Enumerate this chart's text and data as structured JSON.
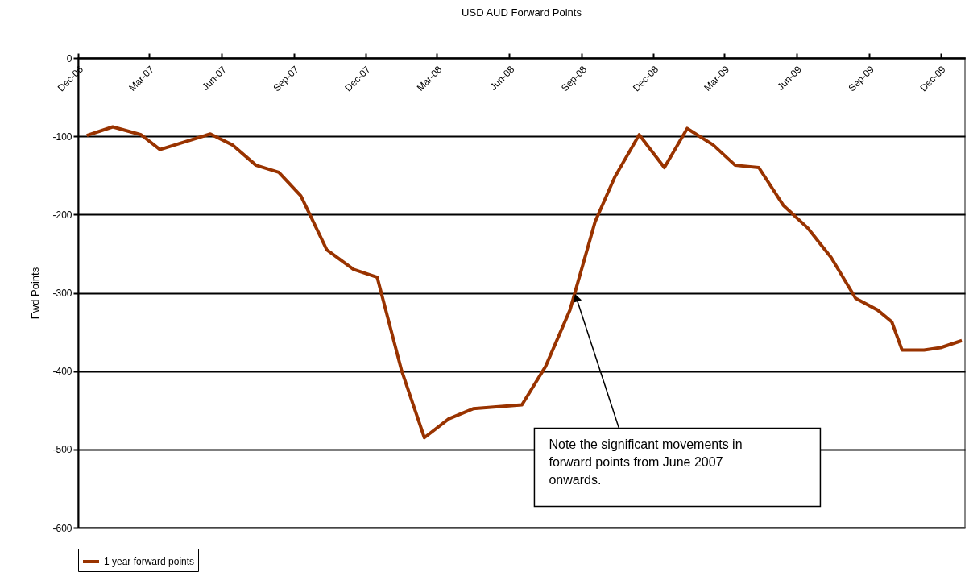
{
  "chart_data": {
    "type": "line",
    "title": "USD AUD Forward Points",
    "ylabel": "Fwd Points",
    "x": [
      "2006-12-12",
      "2007-01-14",
      "2007-02-19",
      "2007-03-15",
      "2007-05-18",
      "2007-06-15",
      "2007-07-15",
      "2007-08-13",
      "2007-09-10",
      "2007-10-13",
      "2007-11-16",
      "2007-12-16",
      "2008-01-16",
      "2008-02-14",
      "2008-03-16",
      "2008-04-16",
      "2008-06-17",
      "2008-07-17",
      "2008-08-17",
      "2008-09-18",
      "2008-10-13",
      "2008-11-13",
      "2008-12-15",
      "2009-01-13",
      "2009-02-15",
      "2009-03-15",
      "2009-04-14",
      "2009-05-15",
      "2009-06-15",
      "2009-07-15",
      "2009-08-15",
      "2009-09-12",
      "2009-09-30",
      "2009-10-13",
      "2009-11-10",
      "2009-12-01",
      "2009-12-28"
    ],
    "series": [
      {
        "name": "1 year forward points",
        "color": "#993300",
        "values": [
          -99,
          -88,
          -98,
          -117,
          -97,
          -111,
          -137,
          -146,
          -176,
          -245,
          -270,
          -280,
          -399,
          -485,
          -461,
          -448,
          -443,
          -394,
          -322,
          -209,
          -152,
          -98,
          -140,
          -90,
          -111,
          -137,
          -140,
          -188,
          -217,
          -255,
          -307,
          -322,
          -337,
          -373,
          -373,
          -370,
          -361
        ]
      }
    ],
    "xlim": [
      "2006-12-01",
      "2010-01-01"
    ],
    "xticks": [
      {
        "value": "2006-12-01",
        "label": "Dec-06"
      },
      {
        "value": "2007-03-01",
        "label": "Mar-07"
      },
      {
        "value": "2007-06-01",
        "label": "Jun-07"
      },
      {
        "value": "2007-09-01",
        "label": "Sep-07"
      },
      {
        "value": "2007-12-01",
        "label": "Dec-07"
      },
      {
        "value": "2008-03-01",
        "label": "Mar-08"
      },
      {
        "value": "2008-06-01",
        "label": "Jun-08"
      },
      {
        "value": "2008-09-01",
        "label": "Sep-08"
      },
      {
        "value": "2008-12-01",
        "label": "Dec-08"
      },
      {
        "value": "2009-03-01",
        "label": "Mar-09"
      },
      {
        "value": "2009-06-01",
        "label": "Jun-09"
      },
      {
        "value": "2009-09-01",
        "label": "Sep-09"
      },
      {
        "value": "2009-12-01",
        "label": "Dec-09"
      }
    ],
    "ylim": [
      -600,
      0
    ],
    "yticks": [
      -600,
      -500,
      -400,
      -300,
      -200,
      -100,
      0
    ],
    "grid": "y",
    "legend": "bottom",
    "marker": "none",
    "line_style": "solid",
    "annotations": [
      {
        "text": "Note the significant movements in forward points from June 2007 onwards.",
        "x": "2008-08-23",
        "y": -300
      }
    ]
  }
}
